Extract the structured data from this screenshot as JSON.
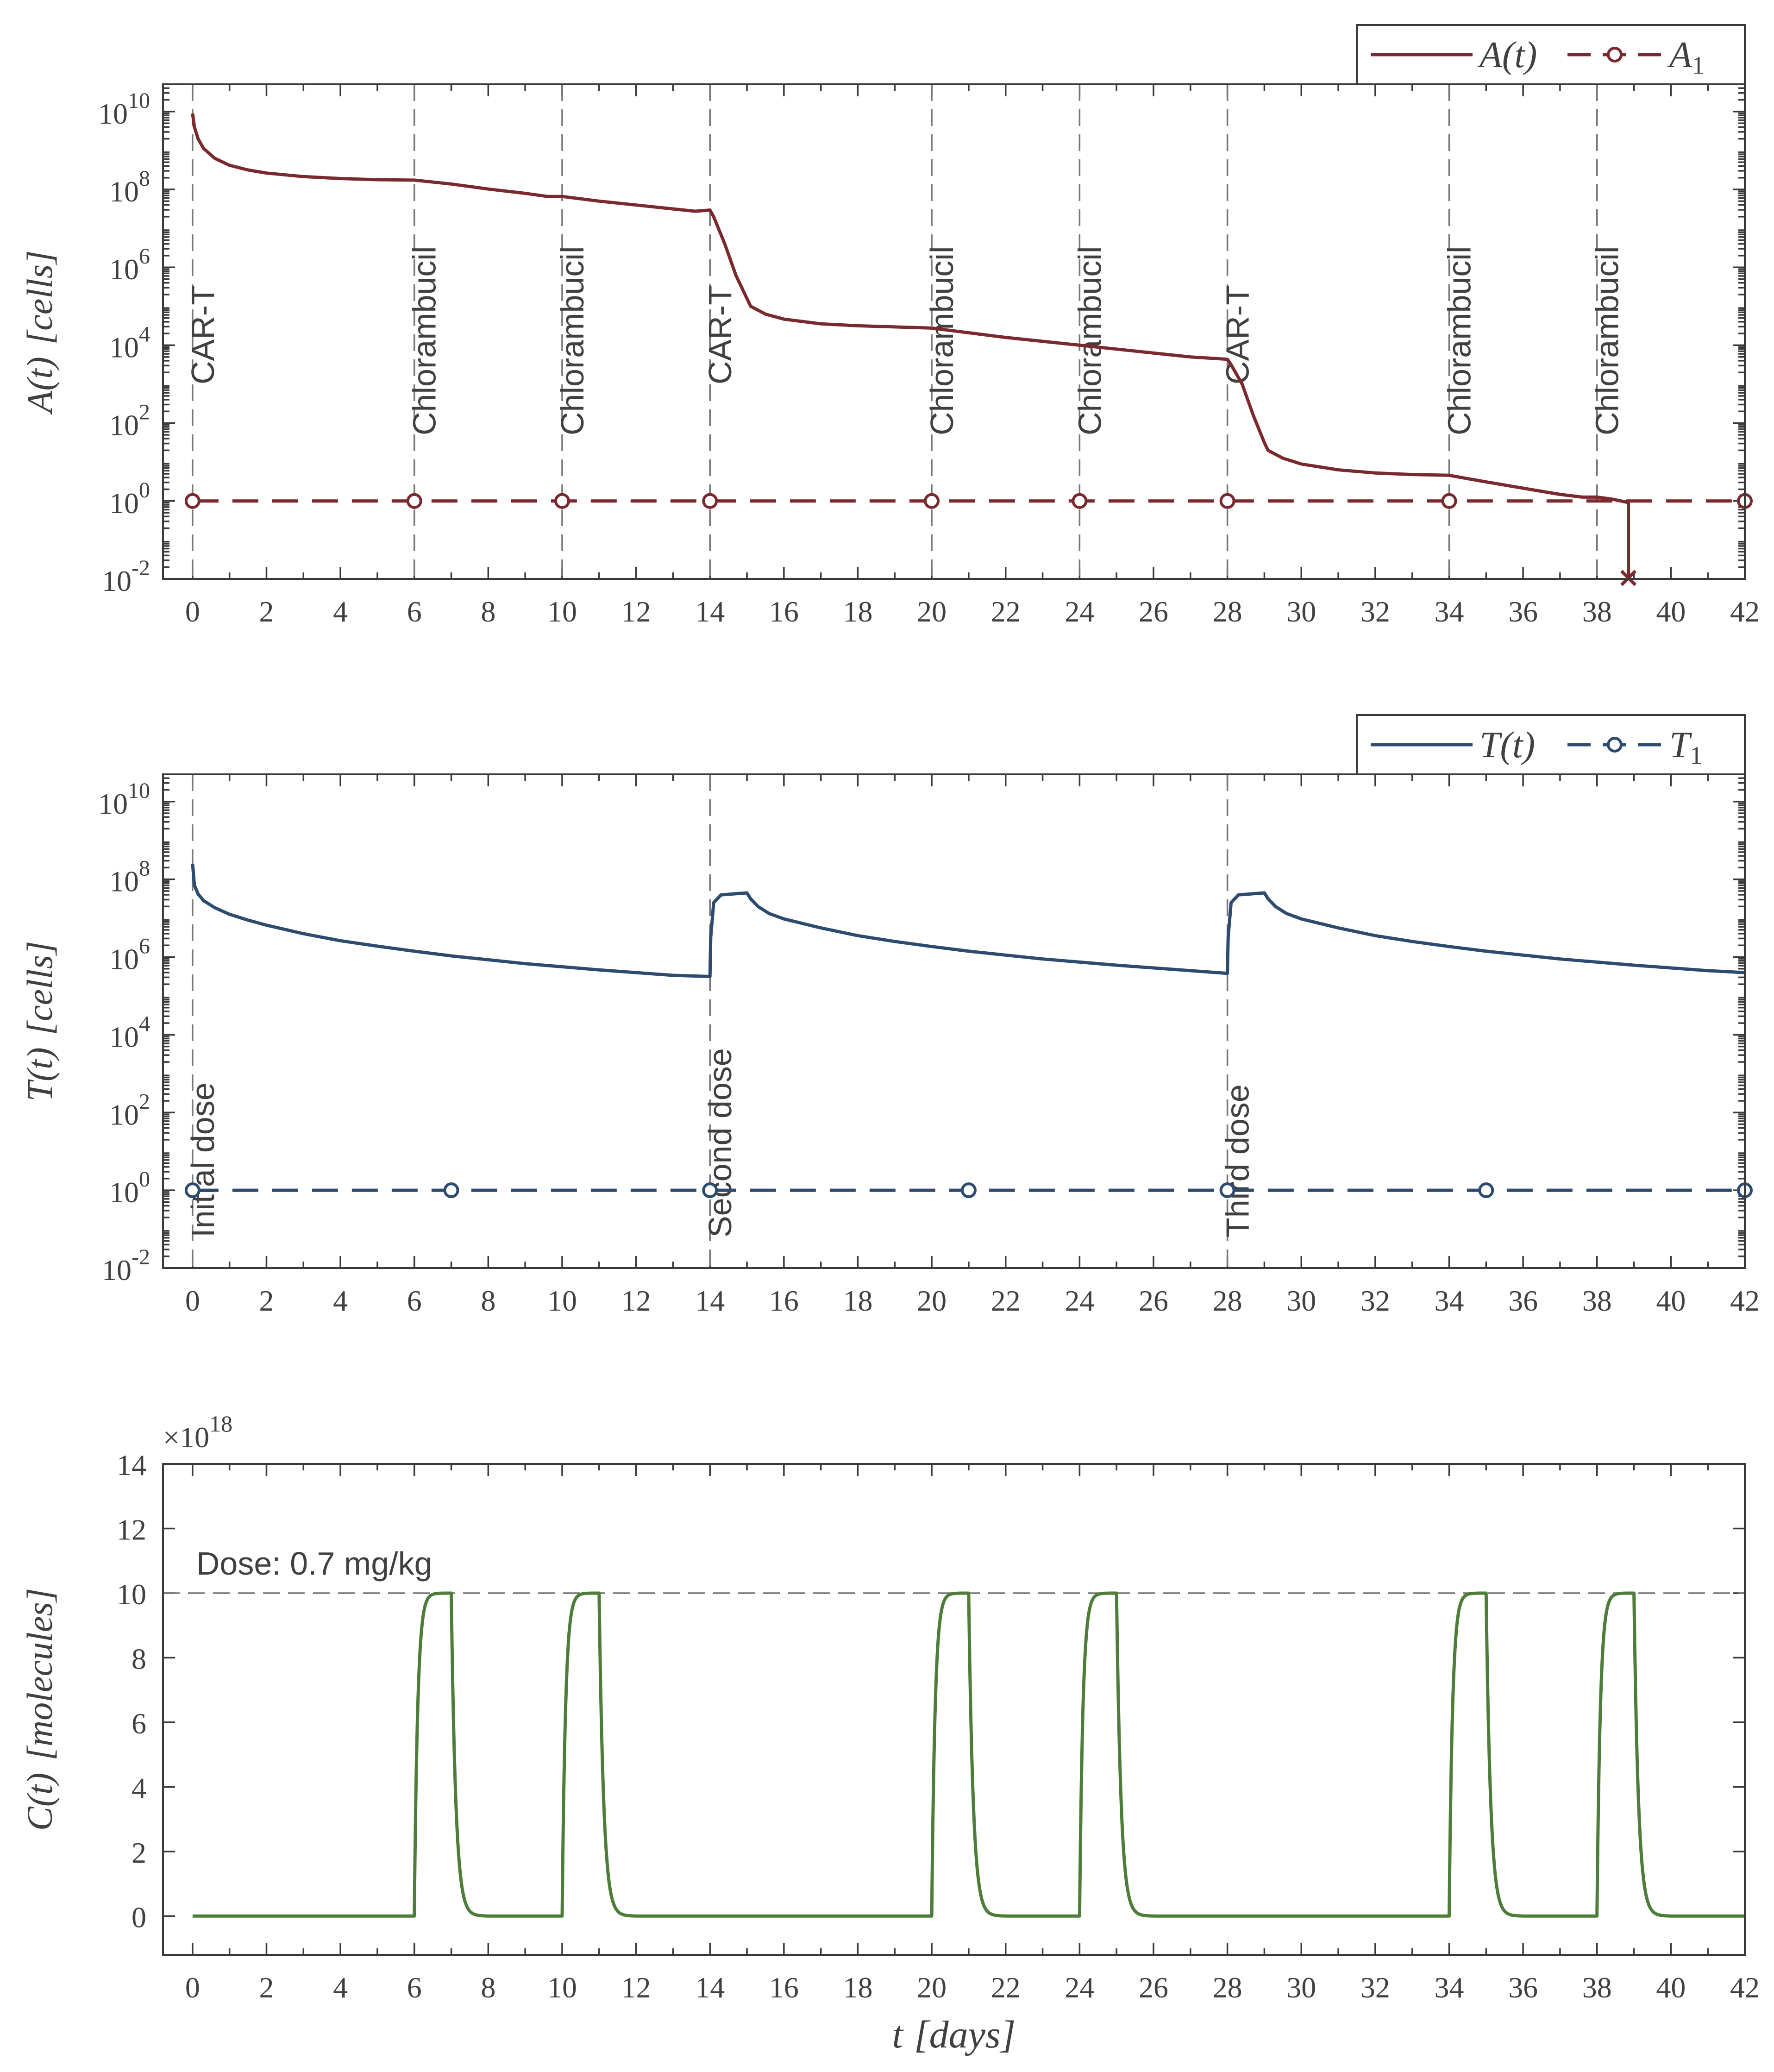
{
  "chart_data": [
    {
      "type": "line",
      "yscale": "log",
      "ylabel_main": "A(t)",
      "ylabel_unit": "[cells]",
      "xlim": [
        -0.8,
        42
      ],
      "ylim_exp": [
        -2,
        10.7
      ],
      "x_ticks": [
        0,
        2,
        4,
        6,
        8,
        10,
        12,
        14,
        16,
        18,
        20,
        22,
        24,
        26,
        28,
        30,
        32,
        34,
        36,
        38,
        40,
        42
      ],
      "y_ticks_exp": [
        -2,
        0,
        2,
        4,
        6,
        8,
        10
      ],
      "y_tick_base": "10",
      "colors": {
        "line": "#7a2a2e"
      },
      "legend": {
        "position": "top-right",
        "entries": [
          {
            "label": "A(t)",
            "style": "solid"
          },
          {
            "label": "A",
            "subscript": "1",
            "style": "dashed-circle"
          }
        ]
      },
      "threshold": {
        "name": "A1",
        "value": 1,
        "marker_x": [
          0,
          6,
          10,
          14,
          20,
          24,
          28,
          34,
          42
        ]
      },
      "events": [
        {
          "x": 0,
          "label": "CAR-T"
        },
        {
          "x": 6,
          "label": "Chlorambucil"
        },
        {
          "x": 10,
          "label": "Chlorambucil"
        },
        {
          "x": 14,
          "label": "CAR-T"
        },
        {
          "x": 20,
          "label": "Chlorambucil"
        },
        {
          "x": 24,
          "label": "Chlorambucil"
        },
        {
          "x": 28,
          "label": "CAR-T"
        },
        {
          "x": 34,
          "label": "Chlorambucil"
        },
        {
          "x": 38,
          "label": "Chlorambucil"
        }
      ],
      "series": [
        {
          "name": "A(t)",
          "x": [
            0,
            0.05,
            0.15,
            0.3,
            0.6,
            1,
            1.5,
            2,
            3,
            4,
            5,
            6,
            7,
            8,
            9,
            9.6,
            10,
            11,
            12,
            13,
            13.6,
            14,
            14.1,
            14.4,
            14.7,
            15,
            15.1,
            15.5,
            16,
            17,
            18,
            19,
            20,
            21,
            22,
            23,
            24,
            25,
            26,
            27,
            28,
            28.1,
            28.4,
            28.7,
            29,
            29.1,
            29.5,
            30,
            31,
            32,
            33,
            34,
            35,
            36,
            37,
            37.6,
            38,
            38.4,
            38.85,
            38.85
          ],
          "y_exp": [
            9.95,
            9.6,
            9.3,
            9.05,
            8.8,
            8.62,
            8.5,
            8.42,
            8.33,
            8.28,
            8.25,
            8.24,
            8.14,
            8.01,
            7.9,
            7.82,
            7.82,
            7.7,
            7.6,
            7.5,
            7.44,
            7.47,
            7.3,
            6.6,
            5.8,
            5.2,
            5.0,
            4.8,
            4.67,
            4.55,
            4.5,
            4.47,
            4.44,
            4.32,
            4.2,
            4.1,
            4.0,
            3.9,
            3.8,
            3.7,
            3.64,
            3.5,
            3.0,
            2.2,
            1.5,
            1.3,
            1.1,
            0.95,
            0.8,
            0.72,
            0.68,
            0.66,
            0.49,
            0.33,
            0.17,
            0.1,
            0.1,
            0.05,
            -0.04,
            -2
          ]
        },
        {
          "name": "A1",
          "style": "dashed",
          "x": [
            0,
            42
          ],
          "y_exp": [
            0,
            0
          ]
        }
      ],
      "end_marker": {
        "x": 38.85,
        "symbol": "x"
      }
    },
    {
      "type": "line",
      "yscale": "log",
      "ylabel_main": "T(t)",
      "ylabel_unit": "[cells]",
      "xlim": [
        -0.8,
        42
      ],
      "ylim_exp": [
        -2,
        10.7
      ],
      "x_ticks": [
        0,
        2,
        4,
        6,
        8,
        10,
        12,
        14,
        16,
        18,
        20,
        22,
        24,
        26,
        28,
        30,
        32,
        34,
        36,
        38,
        40,
        42
      ],
      "y_ticks_exp": [
        -2,
        0,
        2,
        4,
        6,
        8,
        10
      ],
      "y_tick_base": "10",
      "colors": {
        "line": "#2d4b6e"
      },
      "legend": {
        "position": "top-right",
        "entries": [
          {
            "label": "T(t)",
            "style": "solid"
          },
          {
            "label": "T",
            "subscript": "1",
            "style": "dashed-circle"
          }
        ]
      },
      "threshold": {
        "name": "T1",
        "value": 1,
        "marker_x": [
          0,
          7,
          14,
          21,
          28,
          35,
          42
        ]
      },
      "events": [
        {
          "x": 0,
          "label": "Initial dose"
        },
        {
          "x": 14,
          "label": "Second dose"
        },
        {
          "x": 28,
          "label": "Third dose"
        }
      ],
      "series": [
        {
          "name": "T(t)",
          "x": [
            0,
            0.05,
            0.15,
            0.3,
            0.6,
            1,
            1.5,
            2,
            3,
            4,
            5,
            6,
            7,
            8,
            9,
            10,
            11,
            12,
            13,
            14,
            14.02,
            14.1,
            14.3,
            15,
            15.1,
            15.3,
            15.6,
            16,
            17,
            18,
            19,
            20,
            21,
            22,
            23,
            24,
            25,
            26,
            27,
            28,
            28.02,
            28.1,
            28.3,
            29,
            29.1,
            29.3,
            29.6,
            30,
            31,
            32,
            33,
            34,
            35,
            36,
            37,
            38,
            39,
            40,
            41,
            42
          ],
          "y_exp": [
            8.4,
            7.85,
            7.62,
            7.45,
            7.27,
            7.1,
            6.95,
            6.82,
            6.6,
            6.42,
            6.28,
            6.15,
            6.03,
            5.93,
            5.83,
            5.75,
            5.67,
            5.6,
            5.53,
            5.5,
            6.5,
            7.4,
            7.6,
            7.65,
            7.5,
            7.3,
            7.12,
            6.98,
            6.75,
            6.55,
            6.4,
            6.27,
            6.15,
            6.05,
            5.95,
            5.87,
            5.79,
            5.72,
            5.65,
            5.58,
            6.5,
            7.4,
            7.6,
            7.65,
            7.5,
            7.3,
            7.12,
            6.98,
            6.75,
            6.55,
            6.4,
            6.27,
            6.15,
            6.05,
            5.95,
            5.87,
            5.79,
            5.72,
            5.65,
            5.6
          ]
        },
        {
          "name": "T1",
          "style": "dashed",
          "x": [
            0,
            42
          ],
          "y_exp": [
            0,
            0
          ]
        }
      ]
    },
    {
      "type": "line",
      "yscale": "linear",
      "ylabel_main": "C(t)",
      "ylabel_unit": "[molecules]",
      "xlabel_main": "t",
      "xlabel_unit": "[days]",
      "xlim": [
        -0.8,
        42
      ],
      "ylim": [
        -1.2,
        14
      ],
      "x_ticks": [
        0,
        2,
        4,
        6,
        8,
        10,
        12,
        14,
        16,
        18,
        20,
        22,
        24,
        26,
        28,
        30,
        32,
        34,
        36,
        38,
        40,
        42
      ],
      "y_ticks": [
        0,
        2,
        4,
        6,
        8,
        10,
        12,
        14
      ],
      "y_multiplier_base": "×10",
      "y_multiplier_exp": "18",
      "colors": {
        "line": "#4e7d3a"
      },
      "dose_line": {
        "y": 10,
        "label": "Dose: 0.7 mg/kg"
      },
      "dose_starts": [
        6,
        10,
        20,
        24,
        34,
        38
      ],
      "dose_duration_days": 1,
      "peak": 10
    }
  ]
}
